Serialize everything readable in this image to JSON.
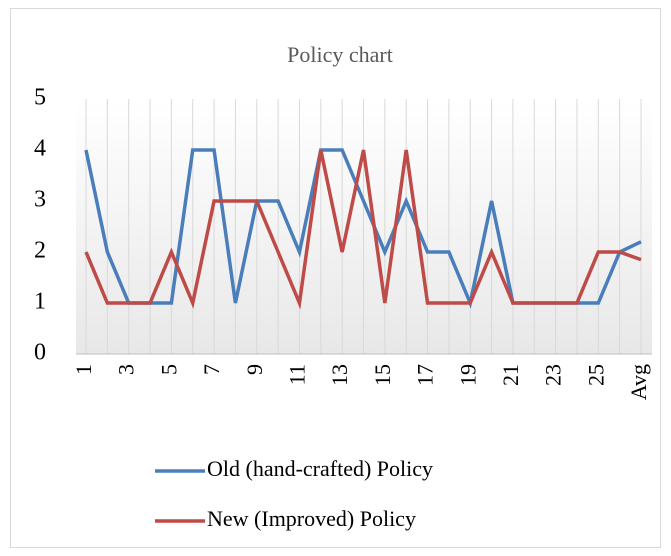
{
  "chart_data": {
    "type": "line",
    "title": "Policy chart",
    "categories": [
      "1",
      null,
      "3",
      null,
      "5",
      null,
      "7",
      null,
      "9",
      null,
      "11",
      null,
      "13",
      null,
      "15",
      null,
      "17",
      null,
      "19",
      null,
      "21",
      null,
      "23",
      null,
      "25",
      null,
      "Avg"
    ],
    "series": [
      {
        "name": "Old (hand-crafted) Policy",
        "color": "#4a7ebb",
        "values": [
          4,
          2,
          1,
          1,
          1,
          4,
          4,
          1,
          3,
          3,
          2,
          4,
          4,
          3,
          2,
          3,
          2,
          2,
          1,
          3,
          1,
          1,
          1,
          1,
          1,
          2,
          2.2
        ]
      },
      {
        "name": "New (Improved) Policy",
        "color": "#be4b48",
        "values": [
          2,
          1,
          1,
          1,
          2,
          1,
          3,
          3,
          3,
          2,
          1,
          4,
          2,
          4,
          1,
          4,
          1,
          1,
          1,
          2,
          1,
          1,
          1,
          1,
          2,
          2,
          1.85
        ]
      }
    ],
    "ylim": [
      0,
      5
    ],
    "yticks": [
      0,
      1,
      2,
      3,
      4,
      5
    ],
    "grid": true,
    "legend": "bottom"
  }
}
